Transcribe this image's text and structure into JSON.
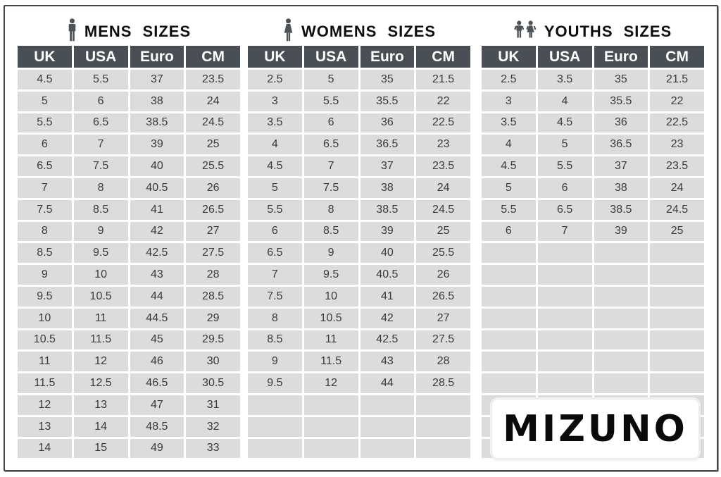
{
  "colors": {
    "header_bg": "#494f54",
    "header_text": "#ffffff",
    "cell_bg": "#dcdcdc",
    "cell_text": "#3a3a3a",
    "title_text": "#0d0d0d",
    "icon_color": "#4d5257",
    "frame_border": "#43474b"
  },
  "tables": [
    {
      "id": "mens",
      "title": "MENS SIZES",
      "icon": "man-icon",
      "columns": [
        "UK",
        "USA",
        "Euro",
        "CM"
      ],
      "rows": [
        [
          "4.5",
          "5.5",
          "37",
          "23.5"
        ],
        [
          "5",
          "6",
          "38",
          "24"
        ],
        [
          "5.5",
          "6.5",
          "38.5",
          "24.5"
        ],
        [
          "6",
          "7",
          "39",
          "25"
        ],
        [
          "6.5",
          "7.5",
          "40",
          "25.5"
        ],
        [
          "7",
          "8",
          "40.5",
          "26"
        ],
        [
          "7.5",
          "8.5",
          "41",
          "26.5"
        ],
        [
          "8",
          "9",
          "42",
          "27"
        ],
        [
          "8.5",
          "9.5",
          "42.5",
          "27.5"
        ],
        [
          "9",
          "10",
          "43",
          "28"
        ],
        [
          "9.5",
          "10.5",
          "44",
          "28.5"
        ],
        [
          "10",
          "11",
          "44.5",
          "29"
        ],
        [
          "10.5",
          "11.5",
          "45",
          "29.5"
        ],
        [
          "11",
          "12",
          "46",
          "30"
        ],
        [
          "11.5",
          "12.5",
          "46.5",
          "30.5"
        ],
        [
          "12",
          "13",
          "47",
          "31"
        ],
        [
          "13",
          "14",
          "48.5",
          "32"
        ],
        [
          "14",
          "15",
          "49",
          "33"
        ]
      ],
      "empty_rows": 0
    },
    {
      "id": "womens",
      "title": "WOMENS SIZES",
      "icon": "woman-icon",
      "columns": [
        "UK",
        "USA",
        "Euro",
        "CM"
      ],
      "rows": [
        [
          "2.5",
          "5",
          "35",
          "21.5"
        ],
        [
          "3",
          "5.5",
          "35.5",
          "22"
        ],
        [
          "3.5",
          "6",
          "36",
          "22.5"
        ],
        [
          "4",
          "6.5",
          "36.5",
          "23"
        ],
        [
          "4.5",
          "7",
          "37",
          "23.5"
        ],
        [
          "5",
          "7.5",
          "38",
          "24"
        ],
        [
          "5.5",
          "8",
          "38.5",
          "24.5"
        ],
        [
          "6",
          "8.5",
          "39",
          "25"
        ],
        [
          "6.5",
          "9",
          "40",
          "25.5"
        ],
        [
          "7",
          "9.5",
          "40.5",
          "26"
        ],
        [
          "7.5",
          "10",
          "41",
          "26.5"
        ],
        [
          "8",
          "10.5",
          "42",
          "27"
        ],
        [
          "8.5",
          "11",
          "42.5",
          "27.5"
        ],
        [
          "9",
          "11.5",
          "43",
          "28"
        ],
        [
          "9.5",
          "12",
          "44",
          "28.5"
        ]
      ],
      "empty_rows": 3
    },
    {
      "id": "youths",
      "title": "YOUTHS SIZES",
      "icon": "children-icon",
      "columns": [
        "UK",
        "USA",
        "Euro",
        "CM"
      ],
      "rows": [
        [
          "2.5",
          "3.5",
          "35",
          "21.5"
        ],
        [
          "3",
          "4",
          "35.5",
          "22"
        ],
        [
          "3.5",
          "4.5",
          "36",
          "22.5"
        ],
        [
          "4",
          "5",
          "36.5",
          "23"
        ],
        [
          "4.5",
          "5.5",
          "37",
          "23.5"
        ],
        [
          "5",
          "6",
          "38",
          "24"
        ],
        [
          "5.5",
          "6.5",
          "38.5",
          "24.5"
        ],
        [
          "6",
          "7",
          "39",
          "25"
        ]
      ],
      "empty_rows": 10
    }
  ],
  "logo": {
    "text": "MIZUNO"
  }
}
